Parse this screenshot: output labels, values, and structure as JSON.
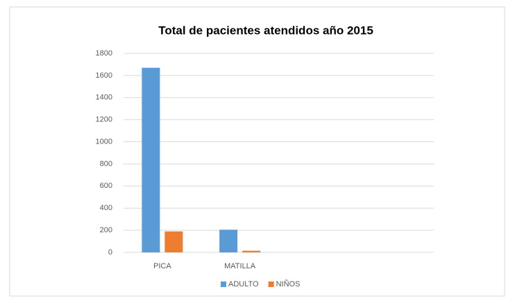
{
  "chart_data": {
    "type": "bar",
    "title": "Total de pacientes atendidos año 2015",
    "categories": [
      "PICA",
      "MATILLA",
      null,
      null
    ],
    "series": [
      {
        "name": "ADULTO",
        "color": "#5b9bd5",
        "values": [
          1670,
          205,
          null,
          null
        ]
      },
      {
        "name": "NIÑOS",
        "color": "#ed7d31",
        "values": [
          190,
          15,
          null,
          null
        ]
      }
    ],
    "ylim": [
      0,
      1800
    ],
    "yticks": [
      0,
      200,
      400,
      600,
      800,
      1000,
      1200,
      1400,
      1600,
      1800
    ],
    "grid": true,
    "legend": "bottom"
  }
}
